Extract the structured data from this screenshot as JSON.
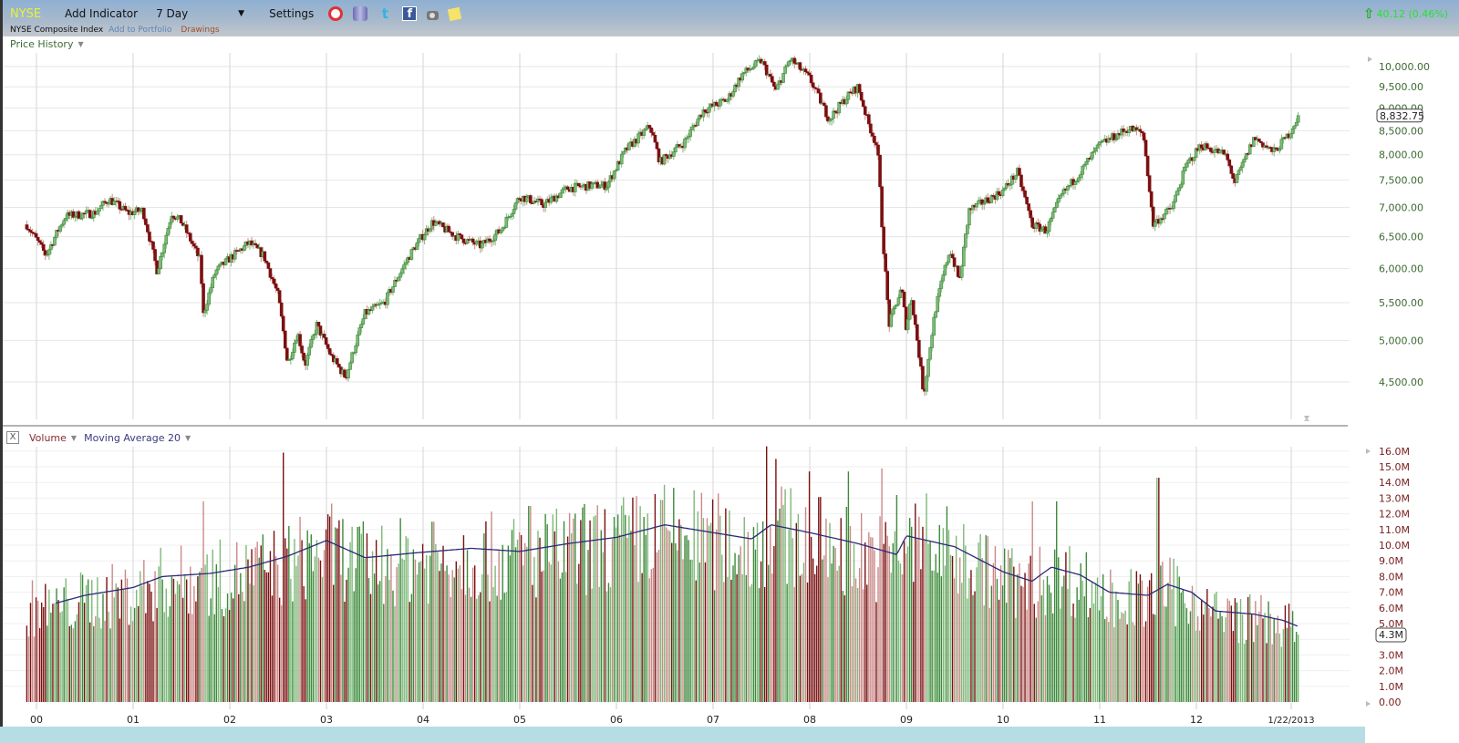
{
  "toolbar": {
    "symbol": "NYSE",
    "add_indicator": "Add Indicator",
    "period": "7 Day",
    "period_caret": "▼",
    "settings": "Settings",
    "icons": [
      "alarm-clock-icon",
      "database-icon",
      "twitter-icon",
      "facebook-icon",
      "camera-icon",
      "sticky-note-icon"
    ],
    "twitter_glyph": "t",
    "facebook_glyph": "f",
    "index_name": "NYSE Composite Index",
    "add_to_portfolio": "Add to Portfolio",
    "drawings": "Drawings",
    "change_arrow": "⇧",
    "change_text": "40.12 (0.46%)"
  },
  "price_pane": {
    "label": "Price History",
    "caret": "▼",
    "last_value": "8,832.75"
  },
  "volume_pane": {
    "close": "X",
    "volume_label": "Volume",
    "ma_label": "Moving Average 20",
    "caret": "▼",
    "last_value": "4.3M"
  },
  "colors": {
    "up": "#3d8a3a",
    "up_light": "#7fb87a",
    "down": "#7a1010",
    "down_light": "#c98a88",
    "ma_line": "#2a2a78",
    "grid": "#e6e6e6",
    "vgrid": "#d6d6d6",
    "price_axis_text": "#3c6a31",
    "volume_axis_text": "#7a2020"
  },
  "chart_data": [
    {
      "type": "ohlc",
      "title": "Price History",
      "subtitle": "NYSE Composite Index, weekly (7 Day)",
      "scale": "log",
      "ylim": [
        4200,
        10300
      ],
      "y_ticks": [
        "10,000.00",
        "9,500.00",
        "9,000.00",
        "8,500.00",
        "8,000.00",
        "7,500.00",
        "7,000.00",
        "6,500.00",
        "6,000.00",
        "5,500.00",
        "5,000.00",
        "4,500.00"
      ],
      "y_tick_values": [
        10000,
        9500,
        9000,
        8500,
        8000,
        7500,
        7000,
        6500,
        6000,
        5500,
        5000,
        4500
      ],
      "x_ticks": [
        "00",
        "01",
        "02",
        "03",
        "04",
        "05",
        "06",
        "07",
        "08",
        "09",
        "10",
        "11",
        "12",
        "1/22/2013"
      ],
      "last_value": 8832.75,
      "grid": true,
      "anchors": [
        [
          1999.9,
          6700
        ],
        [
          2000.1,
          6200
        ],
        [
          2000.3,
          6850
        ],
        [
          2000.6,
          6900
        ],
        [
          2000.75,
          7150
        ],
        [
          2000.95,
          6900
        ],
        [
          2001.1,
          6950
        ],
        [
          2001.25,
          5950
        ],
        [
          2001.4,
          6900
        ],
        [
          2001.5,
          6750
        ],
        [
          2001.7,
          6100
        ],
        [
          2001.72,
          5300
        ],
        [
          2001.85,
          5950
        ],
        [
          2002.0,
          6150
        ],
        [
          2002.2,
          6400
        ],
        [
          2002.35,
          6200
        ],
        [
          2002.5,
          5600
        ],
        [
          2002.6,
          4700
        ],
        [
          2002.7,
          5100
        ],
        [
          2002.78,
          4700
        ],
        [
          2002.9,
          5200
        ],
        [
          2003.05,
          4800
        ],
        [
          2003.2,
          4550
        ],
        [
          2003.4,
          5350
        ],
        [
          2003.6,
          5500
        ],
        [
          2003.9,
          6300
        ],
        [
          2004.1,
          6750
        ],
        [
          2004.35,
          6500
        ],
        [
          2004.6,
          6350
        ],
        [
          2004.8,
          6600
        ],
        [
          2005.0,
          7200
        ],
        [
          2005.25,
          7050
        ],
        [
          2005.5,
          7350
        ],
        [
          2005.75,
          7400
        ],
        [
          2005.9,
          7400
        ],
        [
          2006.1,
          8100
        ],
        [
          2006.35,
          8600
        ],
        [
          2006.45,
          7850
        ],
        [
          2006.7,
          8250
        ],
        [
          2006.9,
          8950
        ],
        [
          2007.15,
          9200
        ],
        [
          2007.3,
          9800
        ],
        [
          2007.5,
          10150
        ],
        [
          2007.65,
          9400
        ],
        [
          2007.8,
          10200
        ],
        [
          2008.0,
          9700
        ],
        [
          2008.2,
          8750
        ],
        [
          2008.4,
          9300
        ],
        [
          2008.5,
          9500
        ],
        [
          2008.6,
          8700
        ],
        [
          2008.7,
          8150
        ],
        [
          2008.75,
          6600
        ],
        [
          2008.82,
          5200
        ],
        [
          2008.95,
          5700
        ],
        [
          2009.0,
          5150
        ],
        [
          2009.05,
          5600
        ],
        [
          2009.18,
          4350
        ],
        [
          2009.3,
          5400
        ],
        [
          2009.45,
          6300
        ],
        [
          2009.55,
          5800
        ],
        [
          2009.65,
          6950
        ],
        [
          2009.8,
          7100
        ],
        [
          2010.0,
          7300
        ],
        [
          2010.15,
          7650
        ],
        [
          2010.3,
          6700
        ],
        [
          2010.45,
          6600
        ],
        [
          2010.6,
          7200
        ],
        [
          2010.8,
          7650
        ],
        [
          2011.0,
          8200
        ],
        [
          2011.3,
          8550
        ],
        [
          2011.45,
          8450
        ],
        [
          2011.55,
          6700
        ],
        [
          2011.75,
          7000
        ],
        [
          2011.9,
          7800
        ],
        [
          2012.05,
          8200
        ],
        [
          2012.3,
          8000
        ],
        [
          2012.4,
          7450
        ],
        [
          2012.6,
          8350
        ],
        [
          2012.8,
          8050
        ],
        [
          2012.95,
          8400
        ],
        [
          2013.06,
          8832.75
        ]
      ]
    },
    {
      "type": "bar",
      "title": "Volume",
      "overlay": "Moving Average 20",
      "ylim": [
        0,
        16
      ],
      "y_unit": "M",
      "y_ticks": [
        "16.0M",
        "15.0M",
        "14.0M",
        "13.0M",
        "12.0M",
        "11.0M",
        "10.0M",
        "9.0M",
        "8.0M",
        "7.0M",
        "6.0M",
        "5.0M",
        "4.3M",
        "3.0M",
        "2.0M",
        "1.0M",
        "0.00"
      ],
      "x_ticks": [
        "00",
        "01",
        "02",
        "03",
        "04",
        "05",
        "06",
        "07",
        "08",
        "09",
        "10",
        "11",
        "12",
        "1/22/2013"
      ],
      "last_value": 4.3,
      "ma_anchors": [
        [
          2000.2,
          6.3
        ],
        [
          2000.5,
          6.8
        ],
        [
          2001.0,
          7.3
        ],
        [
          2001.3,
          8.0
        ],
        [
          2001.8,
          8.2
        ],
        [
          2002.2,
          8.6
        ],
        [
          2002.6,
          9.3
        ],
        [
          2003.0,
          10.3
        ],
        [
          2003.4,
          9.2
        ],
        [
          2003.9,
          9.5
        ],
        [
          2004.5,
          9.8
        ],
        [
          2005.0,
          9.6
        ],
        [
          2005.5,
          10.1
        ],
        [
          2006.0,
          10.5
        ],
        [
          2006.5,
          11.3
        ],
        [
          2006.8,
          11.0
        ],
        [
          2007.4,
          10.4
        ],
        [
          2007.6,
          11.3
        ],
        [
          2008.0,
          10.8
        ],
        [
          2008.5,
          10.1
        ],
        [
          2008.9,
          9.4
        ],
        [
          2009.0,
          10.6
        ],
        [
          2009.5,
          9.9
        ],
        [
          2010.0,
          8.3
        ],
        [
          2010.3,
          7.7
        ],
        [
          2010.5,
          8.6
        ],
        [
          2010.8,
          8.1
        ],
        [
          2011.1,
          7.0
        ],
        [
          2011.5,
          6.8
        ],
        [
          2011.7,
          7.5
        ],
        [
          2011.95,
          7.0
        ],
        [
          2012.2,
          5.8
        ],
        [
          2012.6,
          5.6
        ],
        [
          2012.9,
          5.2
        ],
        [
          2013.06,
          4.8
        ]
      ],
      "peaks": [
        [
          2001.72,
          12.8
        ],
        [
          2002.55,
          15.9
        ],
        [
          2003.0,
          11.0
        ],
        [
          2004.1,
          11.5
        ],
        [
          2005.1,
          12.5
        ],
        [
          2006.45,
          12.9
        ],
        [
          2007.55,
          16.3
        ],
        [
          2007.65,
          15.5
        ],
        [
          2008.0,
          14.7
        ],
        [
          2008.4,
          14.7
        ],
        [
          2008.75,
          14.9
        ],
        [
          2008.9,
          13.2
        ],
        [
          2009.2,
          13.3
        ],
        [
          2010.3,
          12.8
        ],
        [
          2010.55,
          12.8
        ],
        [
          2011.6,
          14.3
        ],
        [
          2013.0,
          5.8
        ]
      ]
    }
  ]
}
